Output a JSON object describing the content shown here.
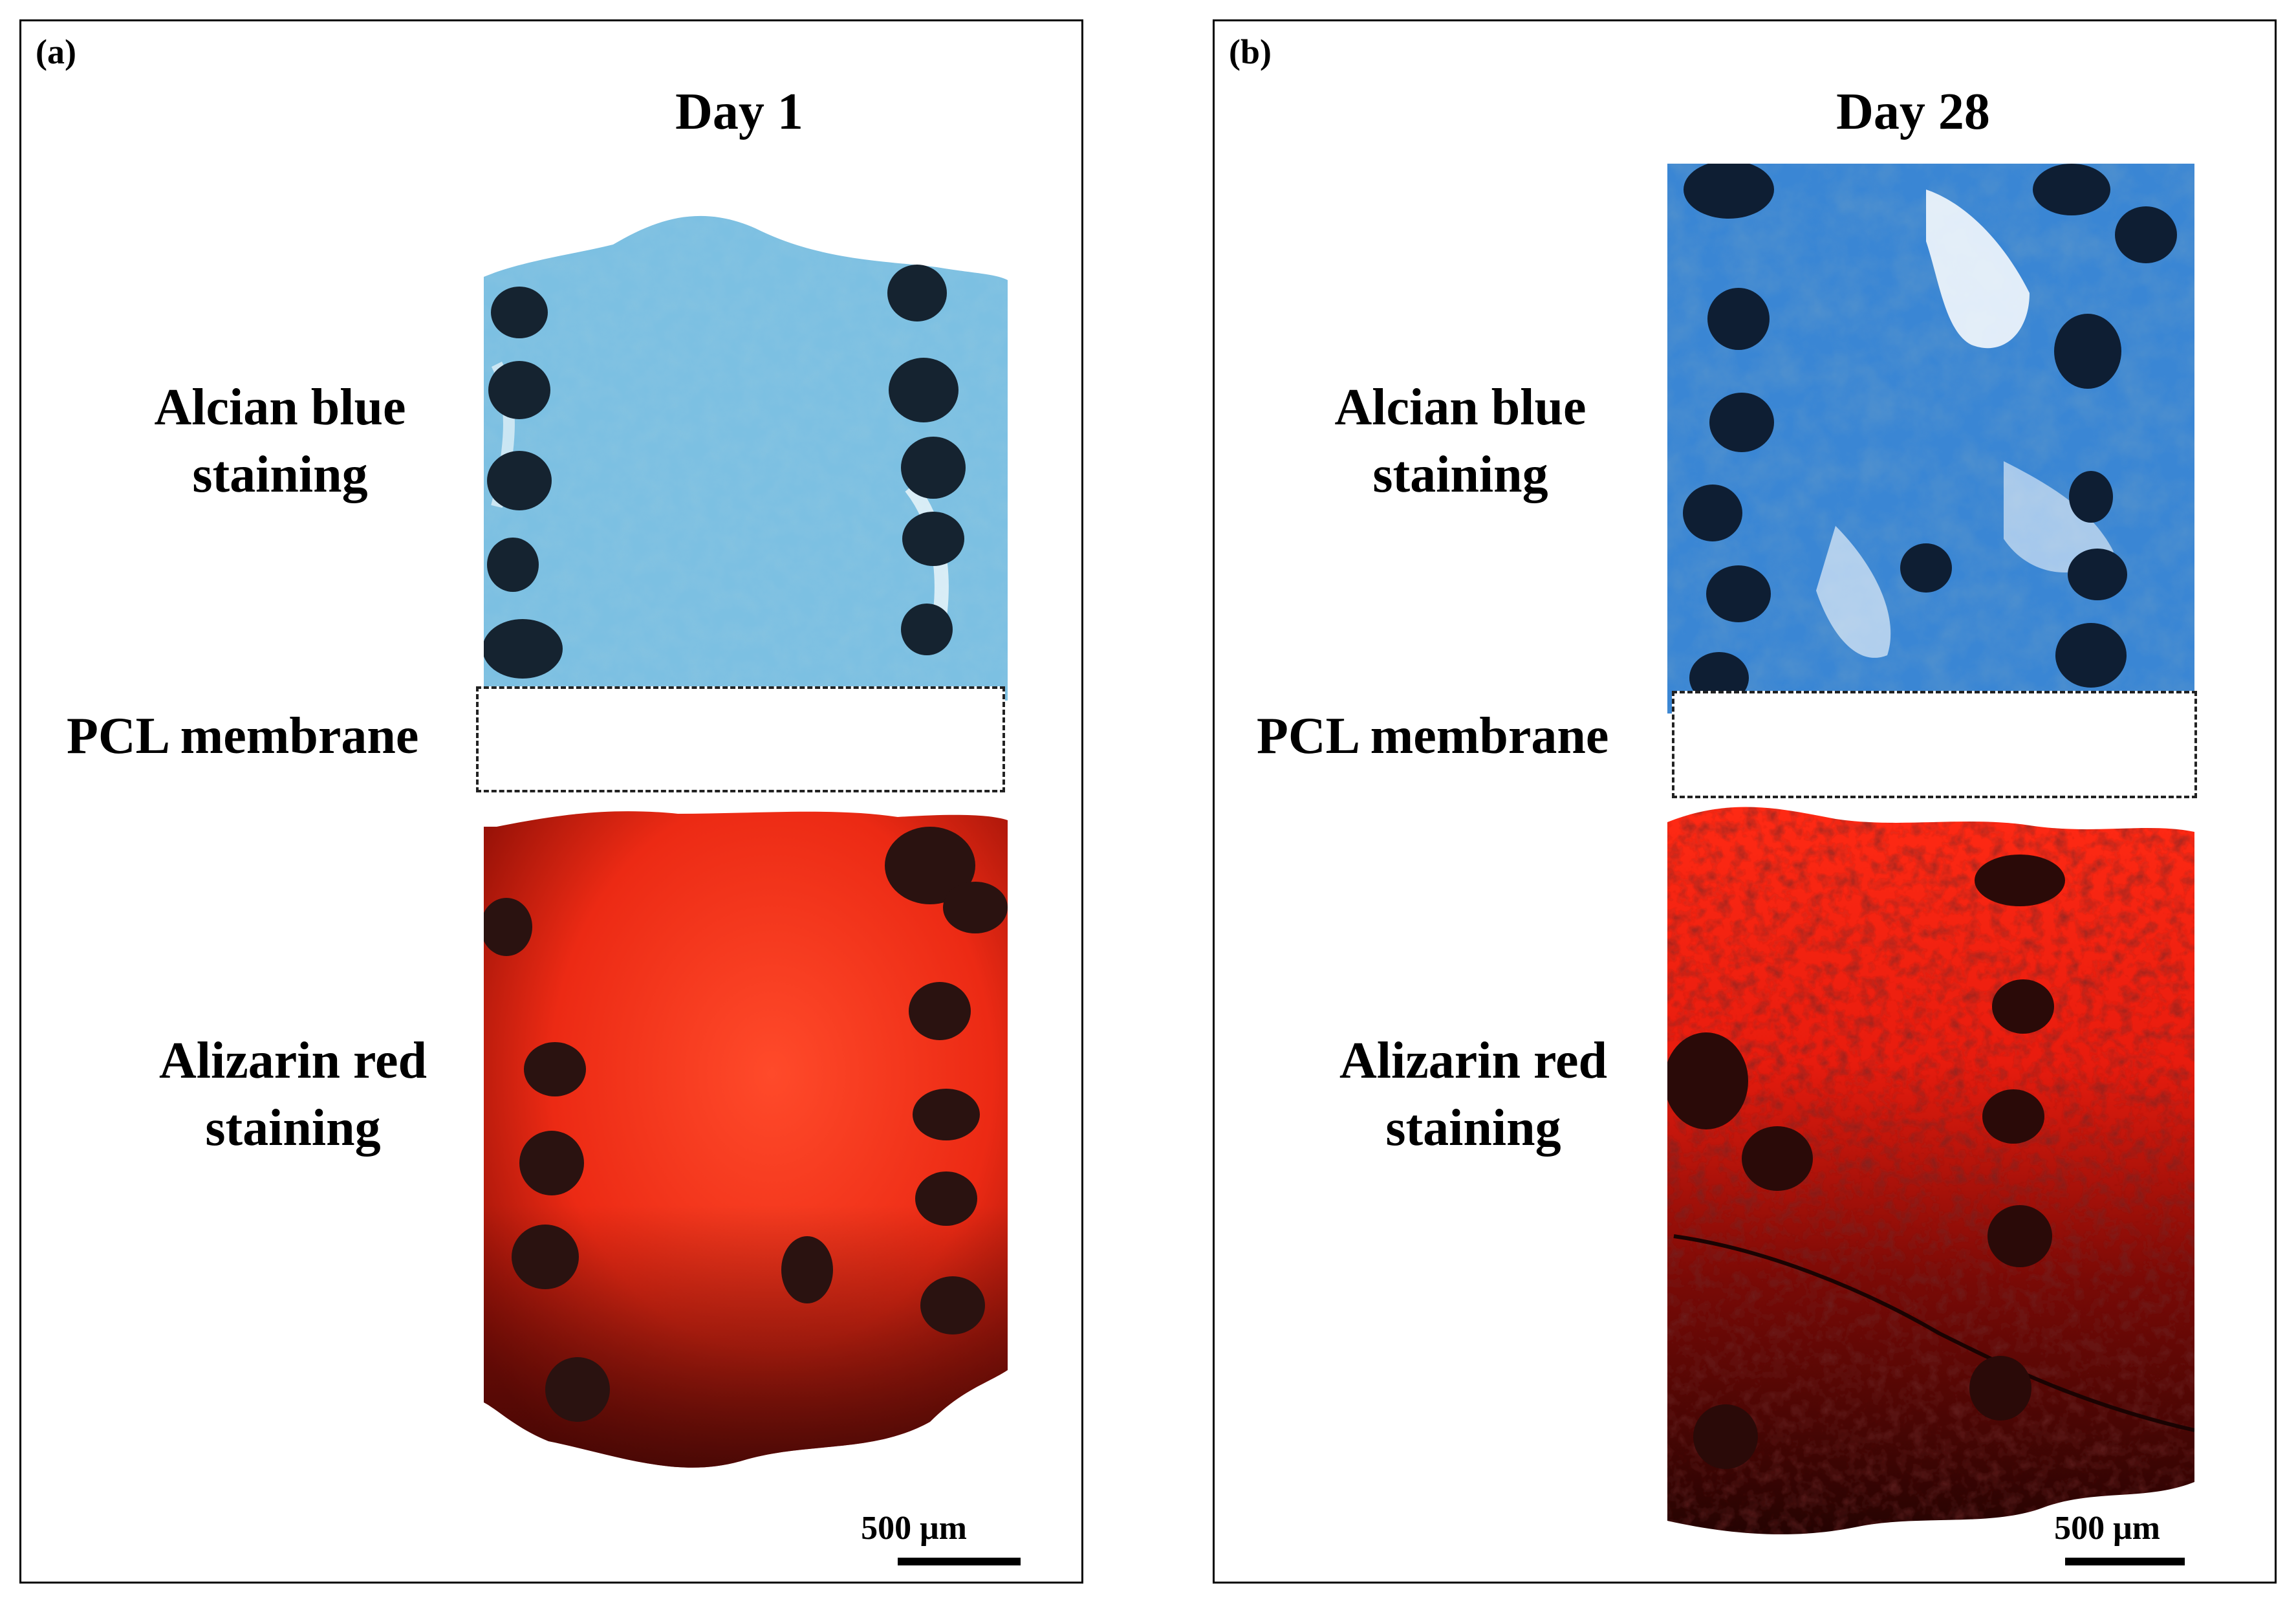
{
  "panels": [
    {
      "label": "(a)",
      "day": "Day 1",
      "alcian_label": "Alcian blue\nstaining",
      "membrane_label": "PCL membrane",
      "alizarin_label": "Alizarin red\nstaining",
      "scale": "500 μm"
    },
    {
      "label": "(b)",
      "day": "Day 28",
      "alcian_label": "Alcian blue\nstaining",
      "membrane_label": "PCL membrane",
      "alizarin_label": "Alizarin red\nstaining",
      "scale": "500 μm"
    }
  ],
  "colors": {
    "alcian_day1": "#6fb7dd",
    "alcian_day28": "#2f7fd0",
    "alizarin_day1": "#f0301a",
    "alizarin_day28": "#c4120a",
    "pore": "#1a2630",
    "border": "#000000"
  }
}
